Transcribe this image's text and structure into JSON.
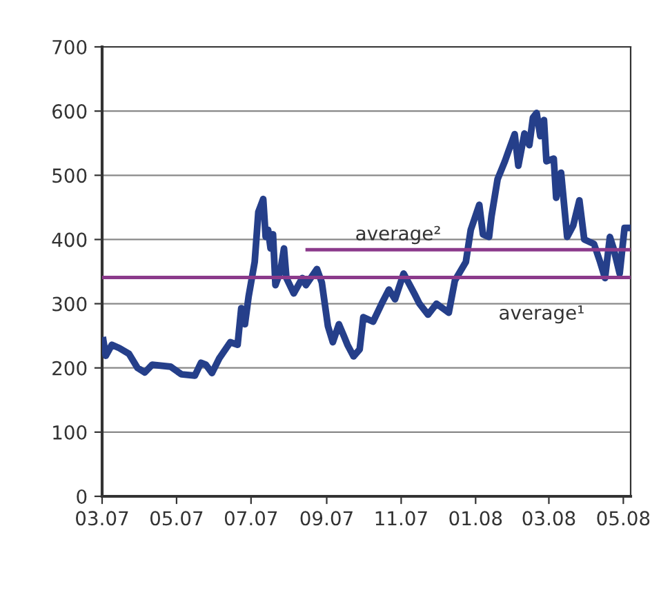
{
  "chart_data": {
    "type": "line",
    "xlim": [
      "2007-03-01",
      "2008-05-07"
    ],
    "ylim": [
      0,
      700
    ],
    "xticks": [
      {
        "value": "2007-03",
        "label": "03.07"
      },
      {
        "value": "2007-05",
        "label": "05.07"
      },
      {
        "value": "2007-07",
        "label": "07.07"
      },
      {
        "value": "2007-09",
        "label": "09.07"
      },
      {
        "value": "2007-11",
        "label": "11.07"
      },
      {
        "value": "2008-01",
        "label": "01.08"
      },
      {
        "value": "2008-03",
        "label": "03.08"
      },
      {
        "value": "2008-05",
        "label": "05.08"
      }
    ],
    "yticks": [
      0,
      100,
      200,
      300,
      400,
      500,
      600,
      700
    ],
    "grid": "y",
    "legend": false,
    "marker": "none",
    "line_style": "solid",
    "series": [
      {
        "color": "#253f8a",
        "x": [
          "2007-03-02",
          "2007-03-04",
          "2007-03-09",
          "2007-03-15",
          "2007-03-23",
          "2007-03-30",
          "2007-04-05",
          "2007-04-11",
          "2007-04-26",
          "2007-05-05",
          "2007-05-16",
          "2007-05-21",
          "2007-05-25",
          "2007-05-30",
          "2007-06-05",
          "2007-06-14",
          "2007-06-20",
          "2007-06-23",
          "2007-06-26",
          "2007-06-29",
          "2007-07-04",
          "2007-07-07",
          "2007-07-11",
          "2007-07-13",
          "2007-07-15",
          "2007-07-17",
          "2007-07-19",
          "2007-07-21",
          "2007-07-25",
          "2007-07-28",
          "2007-07-30",
          "2007-08-05",
          "2007-08-12",
          "2007-08-15",
          "2007-08-24",
          "2007-08-28",
          "2007-09-02",
          "2007-09-06",
          "2007-09-11",
          "2007-09-15",
          "2007-09-18",
          "2007-09-23",
          "2007-09-28",
          "2007-10-01",
          "2007-10-09",
          "2007-10-16",
          "2007-10-22",
          "2007-10-27",
          "2007-11-03",
          "2007-11-12",
          "2007-11-16",
          "2007-11-23",
          "2007-11-30",
          "2007-12-10",
          "2007-12-15",
          "2007-12-24",
          "2007-12-28",
          "2008-01-04",
          "2008-01-07",
          "2008-01-12",
          "2008-01-14",
          "2008-01-19",
          "2008-01-25",
          "2008-01-28",
          "2008-02-02",
          "2008-02-05",
          "2008-02-10",
          "2008-02-14",
          "2008-02-17",
          "2008-02-20",
          "2008-02-23",
          "2008-02-26",
          "2008-02-28",
          "2008-03-05",
          "2008-03-07",
          "2008-03-11",
          "2008-03-16",
          "2008-03-21",
          "2008-03-26",
          "2008-03-30",
          "2008-04-07",
          "2008-04-12",
          "2008-04-16",
          "2008-04-20",
          "2008-04-23",
          "2008-04-28",
          "2008-05-02",
          "2008-05-06"
        ],
        "values": [
          243,
          219,
          236,
          231,
          222,
          200,
          193,
          205,
          202,
          190,
          188,
          208,
          205,
          192,
          215,
          240,
          236,
          293,
          268,
          311,
          365,
          443,
          463,
          404,
          415,
          386,
          408,
          329,
          350,
          386,
          340,
          316,
          340,
          329,
          354,
          333,
          265,
          240,
          268,
          250,
          236,
          218,
          229,
          279,
          272,
          300,
          322,
          307,
          347,
          315,
          300,
          283,
          300,
          286,
          336,
          365,
          415,
          454,
          408,
          404,
          436,
          494,
          522,
          538,
          564,
          515,
          565,
          547,
          590,
          597,
          561,
          586,
          522,
          526,
          465,
          504,
          404,
          422,
          461,
          400,
          393,
          365,
          340,
          404,
          386,
          347,
          418,
          418
        ]
      },
      {
        "name": "average²",
        "color": "#8b3a8b",
        "x": [
          "2007-08-16",
          "2008-05-07"
        ],
        "values": [
          384,
          384
        ]
      }
    ],
    "ref_lines": [
      {
        "axis": "y",
        "value": 341,
        "label": "average¹",
        "color": "#8b3a8b"
      }
    ]
  }
}
